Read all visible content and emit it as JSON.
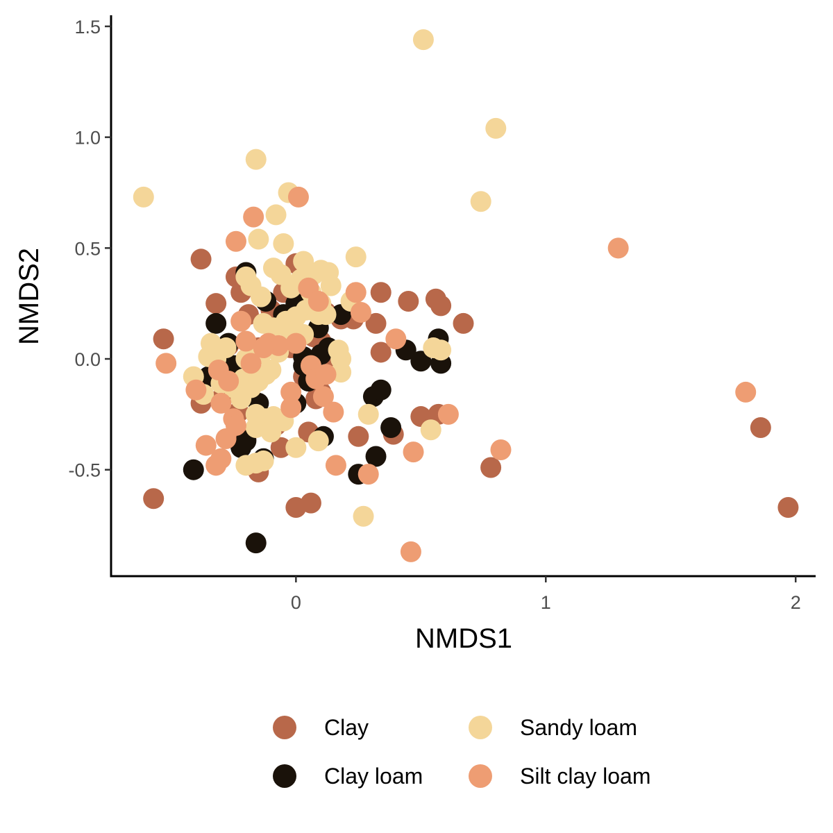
{
  "chart_data": {
    "type": "scatter",
    "title": "",
    "xlabel": "NMDS1",
    "ylabel": "NMDS2",
    "xlim": [
      -0.74,
      2.08
    ],
    "ylim": [
      -0.98,
      1.55
    ],
    "xticks": [
      {
        "value": 0,
        "label": "0"
      },
      {
        "value": 1,
        "label": "1"
      },
      {
        "value": 2,
        "label": "2"
      }
    ],
    "yticks": [
      {
        "value": -0.5,
        "label": "-0.5"
      },
      {
        "value": 0,
        "label": "0.0"
      },
      {
        "value": 0.5,
        "label": "0.5"
      },
      {
        "value": 1.0,
        "label": "1.0"
      },
      {
        "value": 1.5,
        "label": "1.5"
      }
    ],
    "grid": false,
    "legend_position": "bottom",
    "series": [
      {
        "name": "Clay",
        "color": "#B8684A",
        "points": [
          [
            -0.38,
            0.45
          ],
          [
            -0.53,
            0.09
          ],
          [
            -0.57,
            -0.63
          ],
          [
            -0.32,
            0.25
          ],
          [
            -0.24,
            0.37
          ],
          [
            -0.22,
            0.3
          ],
          [
            -0.19,
            0.2
          ],
          [
            -0.15,
            0.05
          ],
          [
            -0.1,
            0.22
          ],
          [
            -0.05,
            0.3
          ],
          [
            0.0,
            0.43
          ],
          [
            0.03,
            0.38
          ],
          [
            0.07,
            0.1
          ],
          [
            0.1,
            0.08
          ],
          [
            0.12,
            0.21
          ],
          [
            0.18,
            0.18
          ],
          [
            0.23,
            0.18
          ],
          [
            0.34,
            0.3
          ],
          [
            0.32,
            0.16
          ],
          [
            0.45,
            0.26
          ],
          [
            0.56,
            0.27
          ],
          [
            0.58,
            0.24
          ],
          [
            0.67,
            0.16
          ],
          [
            0.34,
            0.03
          ],
          [
            0.15,
            -0.03
          ],
          [
            0.1,
            -0.15
          ],
          [
            0.08,
            -0.18
          ],
          [
            0.05,
            -0.33
          ],
          [
            0.25,
            -0.35
          ],
          [
            0.39,
            -0.34
          ],
          [
            0.5,
            -0.26
          ],
          [
            0.57,
            -0.25
          ],
          [
            0.78,
            -0.49
          ],
          [
            -0.38,
            -0.2
          ],
          [
            -0.3,
            -0.18
          ],
          [
            -0.23,
            -0.24
          ],
          [
            -0.2,
            -0.36
          ],
          [
            -0.08,
            -0.3
          ],
          [
            -0.06,
            -0.4
          ],
          [
            -0.15,
            -0.51
          ],
          [
            0.0,
            -0.67
          ],
          [
            0.06,
            -0.65
          ],
          [
            1.86,
            -0.31
          ],
          [
            1.97,
            -0.67
          ],
          [
            -0.02,
            0.05
          ],
          [
            -0.27,
            0.06
          ],
          [
            0.03,
            -0.08
          ]
        ]
      },
      {
        "name": "Clay loam",
        "color": "#1A120A",
        "points": [
          [
            -0.2,
            0.39
          ],
          [
            -0.32,
            0.16
          ],
          [
            -0.27,
            0.07
          ],
          [
            -0.33,
            0.03
          ],
          [
            -0.25,
            -0.03
          ],
          [
            -0.12,
            0.26
          ],
          [
            -0.05,
            0.2
          ],
          [
            0.0,
            0.25
          ],
          [
            0.03,
            0.01
          ],
          [
            0.1,
            0.02
          ],
          [
            0.13,
            0.05
          ],
          [
            0.18,
            0.2
          ],
          [
            -0.35,
            -0.08
          ],
          [
            -0.22,
            -0.12
          ],
          [
            -0.15,
            -0.2
          ],
          [
            0.0,
            -0.2
          ],
          [
            0.03,
            -0.03
          ],
          [
            0.05,
            -0.1
          ],
          [
            -0.2,
            -0.37
          ],
          [
            -0.22,
            -0.4
          ],
          [
            -0.13,
            -0.45
          ],
          [
            -0.41,
            -0.5
          ],
          [
            0.11,
            -0.35
          ],
          [
            0.31,
            -0.17
          ],
          [
            0.34,
            -0.14
          ],
          [
            0.32,
            -0.44
          ],
          [
            0.25,
            -0.52
          ],
          [
            0.38,
            -0.31
          ],
          [
            0.44,
            0.04
          ],
          [
            0.5,
            -0.01
          ],
          [
            0.57,
            0.09
          ],
          [
            0.58,
            -0.02
          ],
          [
            -0.16,
            -0.83
          ],
          [
            0.09,
            0.14
          ]
        ]
      },
      {
        "name": "Sandy loam",
        "color": "#F4D699",
        "points": [
          [
            0.51,
            1.44
          ],
          [
            0.8,
            1.04
          ],
          [
            -0.61,
            0.73
          ],
          [
            -0.16,
            0.9
          ],
          [
            -0.03,
            0.75
          ],
          [
            0.74,
            0.71
          ],
          [
            -0.08,
            0.65
          ],
          [
            -0.15,
            0.54
          ],
          [
            -0.05,
            0.52
          ],
          [
            0.24,
            0.46
          ],
          [
            0.03,
            0.44
          ],
          [
            -0.09,
            0.41
          ],
          [
            -0.06,
            0.38
          ],
          [
            0.02,
            0.36
          ],
          [
            0.07,
            0.38
          ],
          [
            0.1,
            0.4
          ],
          [
            0.13,
            0.39
          ],
          [
            0.14,
            0.33
          ],
          [
            0.06,
            0.3
          ],
          [
            -0.02,
            0.32
          ],
          [
            -0.2,
            0.37
          ],
          [
            -0.18,
            0.33
          ],
          [
            -0.14,
            0.28
          ],
          [
            0.22,
            0.26
          ],
          [
            0.1,
            0.25
          ],
          [
            0.04,
            0.22
          ],
          [
            0.09,
            0.2
          ],
          [
            0.12,
            0.2
          ],
          [
            0.0,
            0.19
          ],
          [
            -0.04,
            0.17
          ],
          [
            -0.13,
            0.16
          ],
          [
            -0.09,
            0.14
          ],
          [
            -0.02,
            0.12
          ],
          [
            0.03,
            0.11
          ],
          [
            -0.34,
            0.07
          ],
          [
            -0.28,
            0.05
          ],
          [
            -0.35,
            0.01
          ],
          [
            -0.32,
            0.0
          ],
          [
            -0.2,
            0.0
          ],
          [
            -0.14,
            0.02
          ],
          [
            -0.07,
            0.03
          ],
          [
            0.17,
            0.04
          ],
          [
            0.18,
            0.0
          ],
          [
            0.18,
            -0.06
          ],
          [
            0.55,
            0.05
          ],
          [
            0.58,
            0.04
          ],
          [
            -0.41,
            -0.08
          ],
          [
            -0.37,
            -0.16
          ],
          [
            -0.3,
            -0.11
          ],
          [
            -0.25,
            -0.13
          ],
          [
            -0.21,
            -0.09
          ],
          [
            -0.18,
            -0.13
          ],
          [
            -0.15,
            -0.1
          ],
          [
            -0.12,
            -0.07
          ],
          [
            -0.22,
            -0.18
          ],
          [
            -0.16,
            -0.25
          ],
          [
            -0.12,
            -0.27
          ],
          [
            -0.09,
            -0.26
          ],
          [
            -0.05,
            -0.28
          ],
          [
            -0.16,
            -0.31
          ],
          [
            -0.1,
            -0.33
          ],
          [
            0.0,
            -0.4
          ],
          [
            0.09,
            -0.37
          ],
          [
            0.29,
            -0.25
          ],
          [
            0.54,
            -0.32
          ],
          [
            -0.2,
            -0.48
          ],
          [
            -0.16,
            -0.47
          ],
          [
            -0.13,
            -0.46
          ],
          [
            0.27,
            -0.71
          ],
          [
            -0.1,
            -0.05
          ]
        ]
      },
      {
        "name": "Silt clay loam",
        "color": "#EE9D73",
        "points": [
          [
            -0.17,
            0.64
          ],
          [
            0.01,
            0.73
          ],
          [
            -0.24,
            0.53
          ],
          [
            1.29,
            0.5
          ],
          [
            0.24,
            0.3
          ],
          [
            0.26,
            0.21
          ],
          [
            -0.22,
            0.17
          ],
          [
            0.05,
            0.32
          ],
          [
            0.09,
            0.26
          ],
          [
            0.4,
            0.09
          ],
          [
            -0.52,
            -0.02
          ],
          [
            -0.4,
            -0.14
          ],
          [
            -0.31,
            -0.05
          ],
          [
            -0.27,
            -0.1
          ],
          [
            -0.18,
            -0.02
          ],
          [
            -0.11,
            0.07
          ],
          [
            -0.07,
            0.06
          ],
          [
            0.0,
            0.07
          ],
          [
            0.06,
            -0.03
          ],
          [
            0.08,
            -0.09
          ],
          [
            0.12,
            -0.07
          ],
          [
            -0.2,
            0.08
          ],
          [
            -0.3,
            -0.2
          ],
          [
            -0.25,
            -0.27
          ],
          [
            -0.24,
            -0.3
          ],
          [
            -0.28,
            -0.36
          ],
          [
            -0.36,
            -0.39
          ],
          [
            -0.3,
            -0.45
          ],
          [
            -0.32,
            -0.48
          ],
          [
            -0.02,
            -0.15
          ],
          [
            0.11,
            -0.17
          ],
          [
            0.15,
            -0.24
          ],
          [
            0.16,
            -0.48
          ],
          [
            0.29,
            -0.52
          ],
          [
            0.47,
            -0.42
          ],
          [
            0.61,
            -0.25
          ],
          [
            0.82,
            -0.41
          ],
          [
            1.8,
            -0.15
          ],
          [
            0.46,
            -0.87
          ],
          [
            -0.02,
            -0.22
          ],
          [
            -0.13,
            0.05
          ]
        ]
      }
    ]
  }
}
